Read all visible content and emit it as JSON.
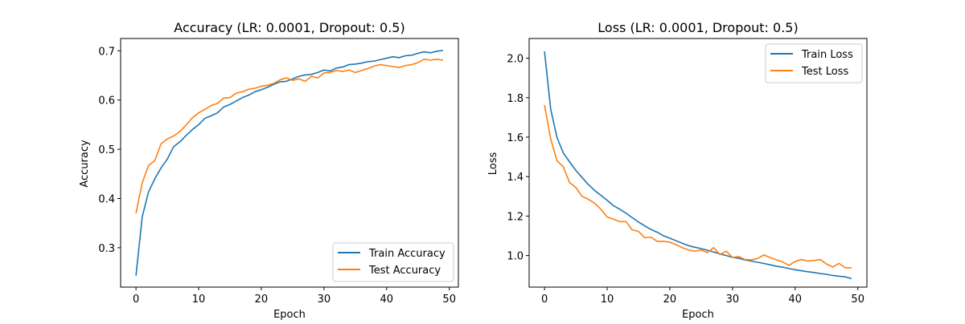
{
  "chart_data": [
    {
      "type": "line",
      "title": "Accuracy (LR: 0.0001, Dropout: 0.5)",
      "xlabel": "Epoch",
      "ylabel": "Accuracy",
      "xlim": [
        -2.45,
        51.45
      ],
      "ylim": [
        0.22,
        0.725
      ],
      "xticks": [
        0,
        10,
        20,
        30,
        40,
        50
      ],
      "yticks": [
        0.3,
        0.4,
        0.5,
        0.6,
        0.7
      ],
      "ytick_labels": [
        "0.3",
        "0.4",
        "0.5",
        "0.6",
        "0.7"
      ],
      "legend_position": "lower-right",
      "grid": false,
      "x": [
        0,
        1,
        2,
        3,
        4,
        5,
        6,
        7,
        8,
        9,
        10,
        11,
        12,
        13,
        14,
        15,
        16,
        17,
        18,
        19,
        20,
        21,
        22,
        23,
        24,
        25,
        26,
        27,
        28,
        29,
        30,
        31,
        32,
        33,
        34,
        35,
        36,
        37,
        38,
        39,
        40,
        41,
        42,
        43,
        44,
        45,
        46,
        47,
        48,
        49
      ],
      "series": [
        {
          "name": "Train Accuracy",
          "color": "#1f77b4",
          "values": [
            0.243,
            0.363,
            0.413,
            0.44,
            0.462,
            0.48,
            0.505,
            0.515,
            0.528,
            0.54,
            0.55,
            0.563,
            0.568,
            0.574,
            0.586,
            0.591,
            0.598,
            0.605,
            0.61,
            0.617,
            0.621,
            0.626,
            0.632,
            0.637,
            0.638,
            0.643,
            0.648,
            0.651,
            0.652,
            0.656,
            0.661,
            0.659,
            0.665,
            0.667,
            0.672,
            0.673,
            0.675,
            0.678,
            0.679,
            0.682,
            0.685,
            0.688,
            0.686,
            0.69,
            0.691,
            0.695,
            0.698,
            0.696,
            0.699,
            0.701
          ]
        },
        {
          "name": "Test Accuracy",
          "color": "#ff7f0e",
          "values": [
            0.37,
            0.432,
            0.467,
            0.477,
            0.511,
            0.521,
            0.527,
            0.536,
            0.549,
            0.564,
            0.574,
            0.581,
            0.589,
            0.593,
            0.604,
            0.605,
            0.614,
            0.617,
            0.622,
            0.624,
            0.628,
            0.63,
            0.634,
            0.641,
            0.645,
            0.64,
            0.643,
            0.638,
            0.648,
            0.645,
            0.655,
            0.656,
            0.66,
            0.658,
            0.661,
            0.656,
            0.66,
            0.664,
            0.669,
            0.672,
            0.67,
            0.668,
            0.666,
            0.67,
            0.672,
            0.676,
            0.683,
            0.681,
            0.683,
            0.681
          ]
        }
      ]
    },
    {
      "type": "line",
      "title": "Loss (LR: 0.0001, Dropout: 0.5)",
      "xlabel": "Epoch",
      "ylabel": "Loss",
      "xlim": [
        -2.45,
        51.45
      ],
      "ylim": [
        0.84,
        2.1
      ],
      "xticks": [
        0,
        10,
        20,
        30,
        40,
        50
      ],
      "yticks": [
        1.0,
        1.2,
        1.4,
        1.6,
        1.8,
        2.0
      ],
      "ytick_labels": [
        "1.0",
        "1.2",
        "1.4",
        "1.6",
        "1.8",
        "2.0"
      ],
      "legend_position": "upper-right",
      "grid": false,
      "x": [
        0,
        1,
        2,
        3,
        4,
        5,
        6,
        7,
        8,
        9,
        10,
        11,
        12,
        13,
        14,
        15,
        16,
        17,
        18,
        19,
        20,
        21,
        22,
        23,
        24,
        25,
        26,
        27,
        28,
        29,
        30,
        31,
        32,
        33,
        34,
        35,
        36,
        37,
        38,
        39,
        40,
        41,
        42,
        43,
        44,
        45,
        46,
        47,
        48,
        49
      ],
      "series": [
        {
          "name": "Train Loss",
          "color": "#1f77b4",
          "values": [
            2.035,
            1.74,
            1.598,
            1.52,
            1.475,
            1.432,
            1.395,
            1.36,
            1.33,
            1.305,
            1.28,
            1.253,
            1.235,
            1.215,
            1.192,
            1.17,
            1.15,
            1.132,
            1.118,
            1.1,
            1.088,
            1.075,
            1.062,
            1.05,
            1.042,
            1.035,
            1.027,
            1.018,
            1.008,
            1.0,
            0.991,
            0.986,
            0.978,
            0.972,
            0.966,
            0.96,
            0.953,
            0.946,
            0.941,
            0.934,
            0.928,
            0.923,
            0.918,
            0.914,
            0.909,
            0.905,
            0.899,
            0.895,
            0.892,
            0.883
          ]
        },
        {
          "name": "Test Loss",
          "color": "#ff7f0e",
          "values": [
            1.762,
            1.59,
            1.48,
            1.45,
            1.37,
            1.345,
            1.3,
            1.285,
            1.265,
            1.235,
            1.195,
            1.185,
            1.172,
            1.172,
            1.13,
            1.122,
            1.09,
            1.093,
            1.072,
            1.072,
            1.068,
            1.055,
            1.04,
            1.028,
            1.022,
            1.028,
            1.015,
            1.04,
            1.005,
            1.022,
            0.99,
            0.995,
            0.98,
            0.978,
            0.985,
            1.003,
            0.99,
            0.978,
            0.968,
            0.95,
            0.97,
            0.98,
            0.972,
            0.975,
            0.98,
            0.957,
            0.942,
            0.96,
            0.938,
            0.938
          ]
        }
      ]
    }
  ]
}
